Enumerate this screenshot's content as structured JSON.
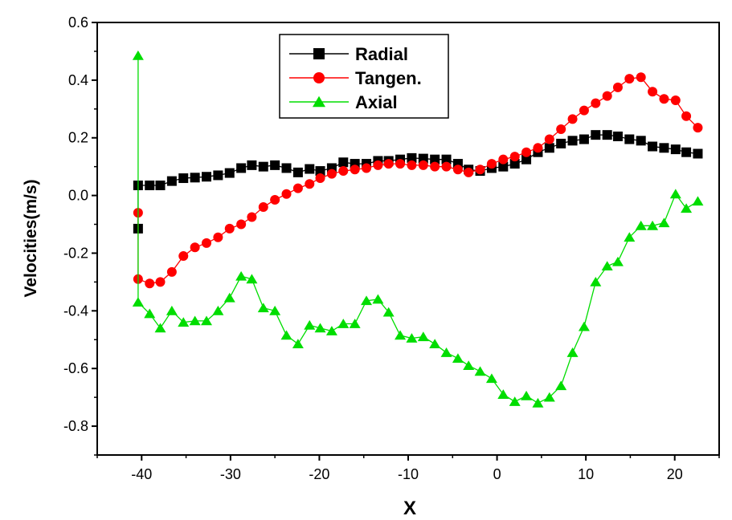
{
  "chart_data": {
    "type": "line",
    "xlabel": "X",
    "ylabel": "Velocities(m/s)",
    "xlim": [
      -45,
      25
    ],
    "ylim": [
      -0.9,
      0.6
    ],
    "x_ticks": [
      -40,
      -30,
      -20,
      -10,
      0,
      10,
      20
    ],
    "x_tick_labels": [
      "-40",
      "-30",
      "-20",
      "-10",
      "0",
      "10",
      "20"
    ],
    "y_ticks": [
      -0.8,
      -0.6,
      -0.4,
      -0.2,
      0.0,
      0.2,
      0.4,
      0.6
    ],
    "y_tick_labels": [
      "-0.8",
      "-0.6",
      "-0.4",
      "-0.2",
      "0.0",
      "0.2",
      "0.4",
      "0.6"
    ],
    "legend_position": "top-center",
    "grid": false,
    "series": [
      {
        "name": "Radial",
        "color": "#000000",
        "marker": "square",
        "x": [
          -40.4,
          -40.4,
          -39.1,
          -37.9,
          -36.6,
          -35.3,
          -34.0,
          -32.7,
          -31.4,
          -30.1,
          -28.8,
          -27.6,
          -26.3,
          -25.0,
          -23.7,
          -22.4,
          -21.1,
          -19.9,
          -18.6,
          -17.3,
          -16.0,
          -14.7,
          -13.4,
          -12.2,
          -10.9,
          -9.6,
          -8.3,
          -7.0,
          -5.7,
          -4.4,
          -3.2,
          -1.9,
          -0.6,
          0.7,
          2.0,
          3.3,
          4.6,
          5.9,
          7.2,
          8.5,
          9.8,
          11.1,
          12.4,
          13.6,
          14.9,
          16.2,
          17.5,
          18.8,
          20.1,
          21.3,
          22.6
        ],
        "y": [
          -0.115,
          0.035,
          0.035,
          0.035,
          0.05,
          0.06,
          0.062,
          0.065,
          0.07,
          0.078,
          0.095,
          0.105,
          0.1,
          0.105,
          0.095,
          0.08,
          0.092,
          0.085,
          0.095,
          0.115,
          0.11,
          0.11,
          0.12,
          0.12,
          0.125,
          0.13,
          0.128,
          0.125,
          0.125,
          0.11,
          0.09,
          0.085,
          0.095,
          0.1,
          0.11,
          0.125,
          0.15,
          0.165,
          0.18,
          0.19,
          0.195,
          0.21,
          0.21,
          0.205,
          0.195,
          0.19,
          0.17,
          0.165,
          0.16,
          0.15,
          0.145
        ]
      },
      {
        "name": "Tangen.",
        "color": "#ff0000",
        "marker": "circle",
        "x": [
          -40.4,
          -40.4,
          -39.1,
          -37.9,
          -36.6,
          -35.3,
          -34.0,
          -32.7,
          -31.4,
          -30.1,
          -28.8,
          -27.6,
          -26.3,
          -25.0,
          -23.7,
          -22.4,
          -21.1,
          -19.9,
          -18.6,
          -17.3,
          -16.0,
          -14.7,
          -13.4,
          -12.2,
          -10.9,
          -9.6,
          -8.3,
          -7.0,
          -5.7,
          -4.4,
          -3.2,
          -1.9,
          -0.6,
          0.7,
          2.0,
          3.3,
          4.6,
          5.9,
          7.2,
          8.5,
          9.8,
          11.1,
          12.4,
          13.6,
          14.9,
          16.2,
          17.5,
          18.8,
          20.1,
          21.3,
          22.6
        ],
        "y": [
          -0.06,
          -0.29,
          -0.305,
          -0.3,
          -0.265,
          -0.21,
          -0.18,
          -0.165,
          -0.145,
          -0.115,
          -0.1,
          -0.075,
          -0.04,
          -0.015,
          0.005,
          0.025,
          0.04,
          0.06,
          0.075,
          0.085,
          0.09,
          0.095,
          0.105,
          0.11,
          0.11,
          0.105,
          0.105,
          0.1,
          0.1,
          0.09,
          0.08,
          0.09,
          0.11,
          0.125,
          0.135,
          0.15,
          0.165,
          0.195,
          0.23,
          0.265,
          0.295,
          0.32,
          0.345,
          0.375,
          0.405,
          0.41,
          0.36,
          0.335,
          0.33,
          0.275,
          0.235
        ]
      },
      {
        "name": "Axial",
        "color": "#00dd00",
        "marker": "triangle",
        "x": [
          -40.4,
          -40.4,
          -39.1,
          -37.9,
          -36.6,
          -35.3,
          -34.0,
          -32.7,
          -31.4,
          -30.1,
          -28.8,
          -27.6,
          -26.3,
          -25.0,
          -23.7,
          -22.4,
          -21.1,
          -19.9,
          -18.6,
          -17.3,
          -16.0,
          -14.7,
          -13.4,
          -12.2,
          -10.9,
          -9.6,
          -8.3,
          -7.0,
          -5.7,
          -4.4,
          -3.2,
          -1.9,
          -0.6,
          0.7,
          2.0,
          3.3,
          4.6,
          5.9,
          7.2,
          8.5,
          9.8,
          11.1,
          12.4,
          13.6,
          14.9,
          16.2,
          17.5,
          18.8,
          20.1,
          21.3,
          22.6
        ],
        "y": [
          0.485,
          -0.37,
          -0.41,
          -0.46,
          -0.4,
          -0.44,
          -0.435,
          -0.435,
          -0.4,
          -0.355,
          -0.28,
          -0.29,
          -0.39,
          -0.4,
          -0.485,
          -0.515,
          -0.45,
          -0.46,
          -0.47,
          -0.445,
          -0.445,
          -0.365,
          -0.36,
          -0.405,
          -0.485,
          -0.495,
          -0.49,
          -0.515,
          -0.545,
          -0.565,
          -0.59,
          -0.61,
          -0.635,
          -0.69,
          -0.715,
          -0.695,
          -0.72,
          -0.7,
          -0.66,
          -0.545,
          -0.455,
          -0.3,
          -0.245,
          -0.23,
          -0.145,
          -0.105,
          -0.105,
          -0.095,
          0.005,
          -0.045,
          -0.02
        ]
      }
    ]
  }
}
